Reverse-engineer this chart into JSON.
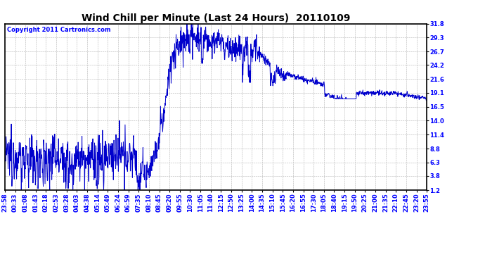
{
  "title": "Wind Chill per Minute (Last 24 Hours)  20110109",
  "copyright": "Copyright 2011 Cartronics.com",
  "line_color": "#0000cc",
  "background_color": "#ffffff",
  "grid_color": "#b0b0b0",
  "yticks": [
    1.2,
    3.8,
    6.3,
    8.8,
    11.4,
    14.0,
    16.5,
    19.1,
    21.6,
    24.2,
    26.7,
    29.3,
    31.8
  ],
  "xtick_labels": [
    "23:58",
    "00:33",
    "01:08",
    "01:43",
    "02:18",
    "02:53",
    "03:28",
    "04:03",
    "04:38",
    "05:14",
    "05:49",
    "06:24",
    "06:59",
    "07:35",
    "08:10",
    "08:45",
    "09:20",
    "09:55",
    "10:30",
    "11:05",
    "11:40",
    "12:15",
    "12:50",
    "13:25",
    "14:00",
    "14:35",
    "15:10",
    "15:45",
    "16:20",
    "16:55",
    "17:30",
    "18:05",
    "18:40",
    "19:15",
    "19:50",
    "20:25",
    "21:00",
    "21:35",
    "22:10",
    "22:45",
    "23:20",
    "23:55"
  ],
  "ymin": 1.2,
  "ymax": 31.8,
  "title_fontsize": 10,
  "tick_fontsize": 6,
  "copyright_fontsize": 6
}
